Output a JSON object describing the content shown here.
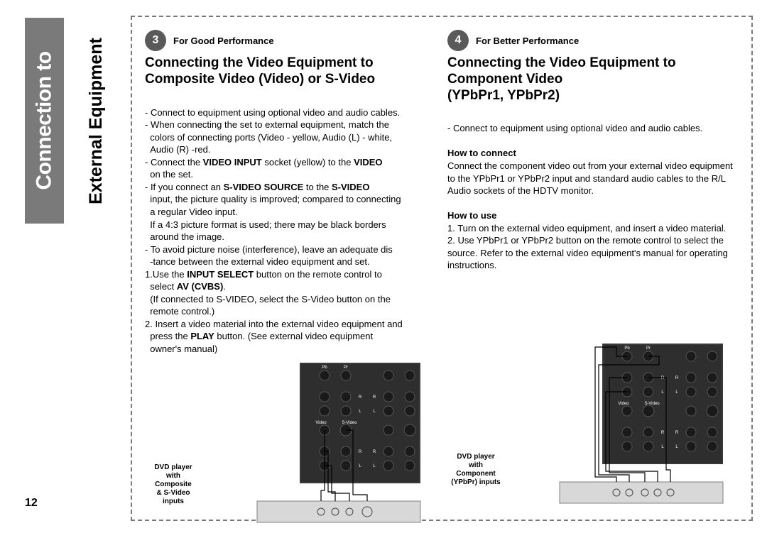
{
  "sidebar": {
    "main_tab": "Connection to",
    "sub_tab": "External Equipment"
  },
  "page_number": "12",
  "left": {
    "step_number": "3",
    "step_label": "For Good Performance",
    "title": "Connecting the Video Equipment to Composite Video (Video) or S-Video",
    "body_html": "- Connect to equipment using optional video and audio cables.<br>- When connecting the set to external equipment, match the<br>&nbsp;&nbsp;colors of connecting ports (Video - yellow, Audio (L) - white,<br>&nbsp;&nbsp;Audio (R) -red.<br>- Connect the <b>VIDEO INPUT</b> socket (yellow) to the <b>VIDEO</b><br>&nbsp;&nbsp;on the set.<br>- If you connect an <b>S-VIDEO SOURCE</b> to the <b>S-VIDEO</b><br>&nbsp;&nbsp;input, the picture quality is improved; compared to connecting<br>&nbsp;&nbsp;a regular Video input.<br>&nbsp;&nbsp;If a 4:3 picture format is used; there may be black borders<br>&nbsp;&nbsp;around the image.<br>- To avoid picture noise (interference), leave an adequate dis<br>&nbsp;&nbsp;-tance between the external video equipment and set.<br>1.Use the <b>INPUT SELECT</b> button on the remote control to<br>&nbsp;&nbsp;select <b>AV (CVBS)</b>.<br>&nbsp;&nbsp;(If connected to S-VIDEO, select the S-Video button on the<br>&nbsp;&nbsp;remote control.)<br>2. Insert a video material into the external video equipment and<br>&nbsp;&nbsp;press the <b>PLAY</b> button. (See external video equipment<br>&nbsp;&nbsp;owner's manual)",
    "caption": "DVD player<br>with<br>Composite<br>& S-Video<br>inputs"
  },
  "right": {
    "step_number": "4",
    "step_label": "For Better Performance",
    "title": "Connecting the Video Equipment to Component Video<br>(YPbPr1, YPbPr2)",
    "body_html": "- Connect to equipment using optional video and audio cables.<br><br><b>How to connect</b><br>Connect the component video out from your external video equipment to the YPbPr1 or YPbPr2 input and standard audio cables to the R/L Audio sockets of the HDTV monitor.<br><br><b>How to use</b><br>1. Turn on the external video equipment, and insert a video material.<br>2. Use YPbPr1 or YPbPr2 button on the remote control to select the source. Refer to the external video equipment's manual for operating instructions.",
    "caption": "DVD player<br>with<br>Component<br>(YPbPr) inputs"
  },
  "diagram": {
    "panel_bg": "#3a3a3a",
    "panel_dark": "#2a2a2a",
    "dvd_bg": "#d8d8d8",
    "dvd_border": "#808080",
    "line": "#000000",
    "text": "#ffffff",
    "jack_labels_top": [
      "Pb",
      "Pr"
    ],
    "jack_rows": [
      "R",
      "R",
      "L",
      "L"
    ],
    "mid_labels": [
      "Video",
      "S-Video"
    ],
    "bottom_rows": [
      "R",
      "R",
      "L",
      "L"
    ]
  }
}
